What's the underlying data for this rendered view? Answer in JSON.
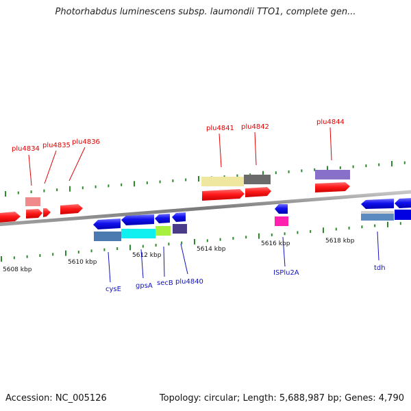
{
  "title": "Photorhabdus luminescens subsp. laumondii TTO1, complete gen...",
  "footer": {
    "accession": "Accession: NC_005126",
    "summary": "Topology: circular; Length: 5,688,987 bp; Genes: 4,790"
  },
  "axis_ticks": [
    "5608 kbp",
    "5610 kbp",
    "5612 kbp",
    "5614 kbp",
    "5616 kbp",
    "5618 kbp"
  ],
  "gene_labels_top": [
    "plu4834",
    "plu4835",
    "plu4836",
    "plu4841",
    "plu4842",
    "plu4844"
  ],
  "gene_labels_bottom": [
    "cysE",
    "gpsA",
    "secB",
    "plu4840",
    "ISPlu2A",
    "tdh"
  ],
  "colors": {
    "forward_gene": "#ff1a1a",
    "reverse_gene": "#0a0af0",
    "backbone": "#8a8a8a",
    "tick_marks": "#2a8a2a"
  }
}
